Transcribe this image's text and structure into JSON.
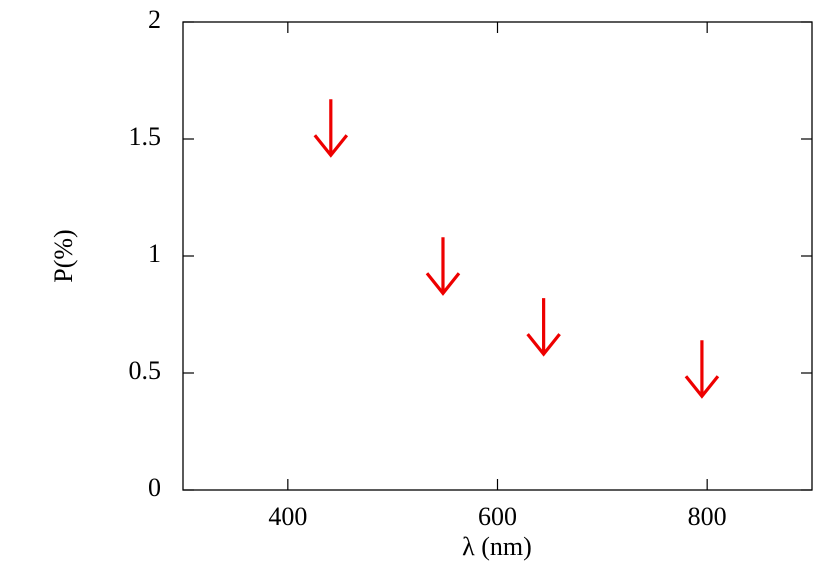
{
  "chart_data": {
    "type": "upper-limit",
    "x_label": "λ (nm)",
    "y_label": "P(%)",
    "x": [
      441,
      548,
      644,
      795
    ],
    "values": [
      1.67,
      1.08,
      0.82,
      0.64
    ],
    "color": "#ee0000",
    "xlim": [
      300,
      900
    ],
    "xticks": [
      400,
      600,
      800
    ],
    "ylim": [
      0,
      2
    ],
    "yticks": [
      0,
      0.5,
      1,
      1.5,
      2
    ]
  }
}
